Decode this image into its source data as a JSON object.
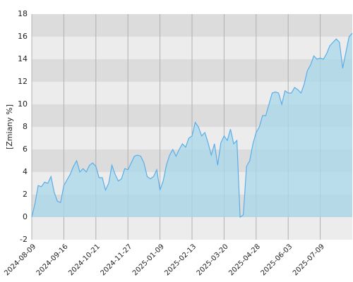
{
  "chart_data": {
    "type": "area",
    "y_label": "[Zmiany %]",
    "categories": [
      "2024-08-09",
      null,
      null,
      null,
      null,
      null,
      null,
      null,
      null,
      null,
      "2024-09-16",
      null,
      null,
      null,
      null,
      null,
      null,
      null,
      null,
      null,
      "2024-10-21",
      null,
      null,
      null,
      null,
      null,
      null,
      null,
      null,
      null,
      "2024-11-27",
      null,
      null,
      null,
      null,
      null,
      null,
      null,
      null,
      null,
      "2025-01-09",
      null,
      null,
      null,
      null,
      null,
      null,
      null,
      null,
      null,
      "2025-02-13",
      null,
      null,
      null,
      null,
      null,
      null,
      null,
      null,
      null,
      "2025-03-20",
      null,
      null,
      null,
      null,
      null,
      null,
      null,
      null,
      null,
      "2025-04-28",
      null,
      null,
      null,
      null,
      null,
      null,
      null,
      null,
      null,
      "2025-06-03",
      null,
      null,
      null,
      null,
      null,
      null,
      null,
      null,
      null,
      "2025-07-09",
      null,
      null,
      null,
      null,
      null,
      null,
      null,
      null,
      null,
      null
    ],
    "values": [
      0,
      1.2,
      2.8,
      2.7,
      3.1,
      3.0,
      3.6,
      2.2,
      1.4,
      1.3,
      2.8,
      3.3,
      3.8,
      4.5,
      5.0,
      4.0,
      4.3,
      4.0,
      4.6,
      4.8,
      4.5,
      3.5,
      3.5,
      2.4,
      3.0,
      4.6,
      3.8,
      3.2,
      3.4,
      4.3,
      4.2,
      4.8,
      5.4,
      5.5,
      5.4,
      4.8,
      3.6,
      3.4,
      3.6,
      4.2,
      2.4,
      3.2,
      4.6,
      5.5,
      6.0,
      5.4,
      6.0,
      6.5,
      6.2,
      7.0,
      7.2,
      8.4,
      8.0,
      7.2,
      7.5,
      6.6,
      5.5,
      6.5,
      4.6,
      6.6,
      7.2,
      6.8,
      7.8,
      6.5,
      6.8,
      0,
      0.2,
      4.5,
      5.0,
      6.5,
      7.5,
      8.0,
      9.0,
      9.0,
      10.0,
      11.0,
      11.1,
      11.0,
      10.0,
      11.2,
      11.0,
      11.0,
      11.5,
      11.3,
      11.0,
      11.8,
      13.0,
      13.5,
      14.3,
      14.0,
      14.1,
      14.0,
      14.5,
      15.2,
      15.5,
      15.8,
      15.5,
      13.2,
      14.6,
      16.0,
      16.3
    ],
    "color": "#5aaee8",
    "fill": "#a9d8ec",
    "ylim": [
      -2,
      18
    ],
    "yticks": [
      -2,
      0,
      2,
      4,
      6,
      8,
      10,
      12,
      14,
      16,
      18
    ],
    "grid": true
  }
}
